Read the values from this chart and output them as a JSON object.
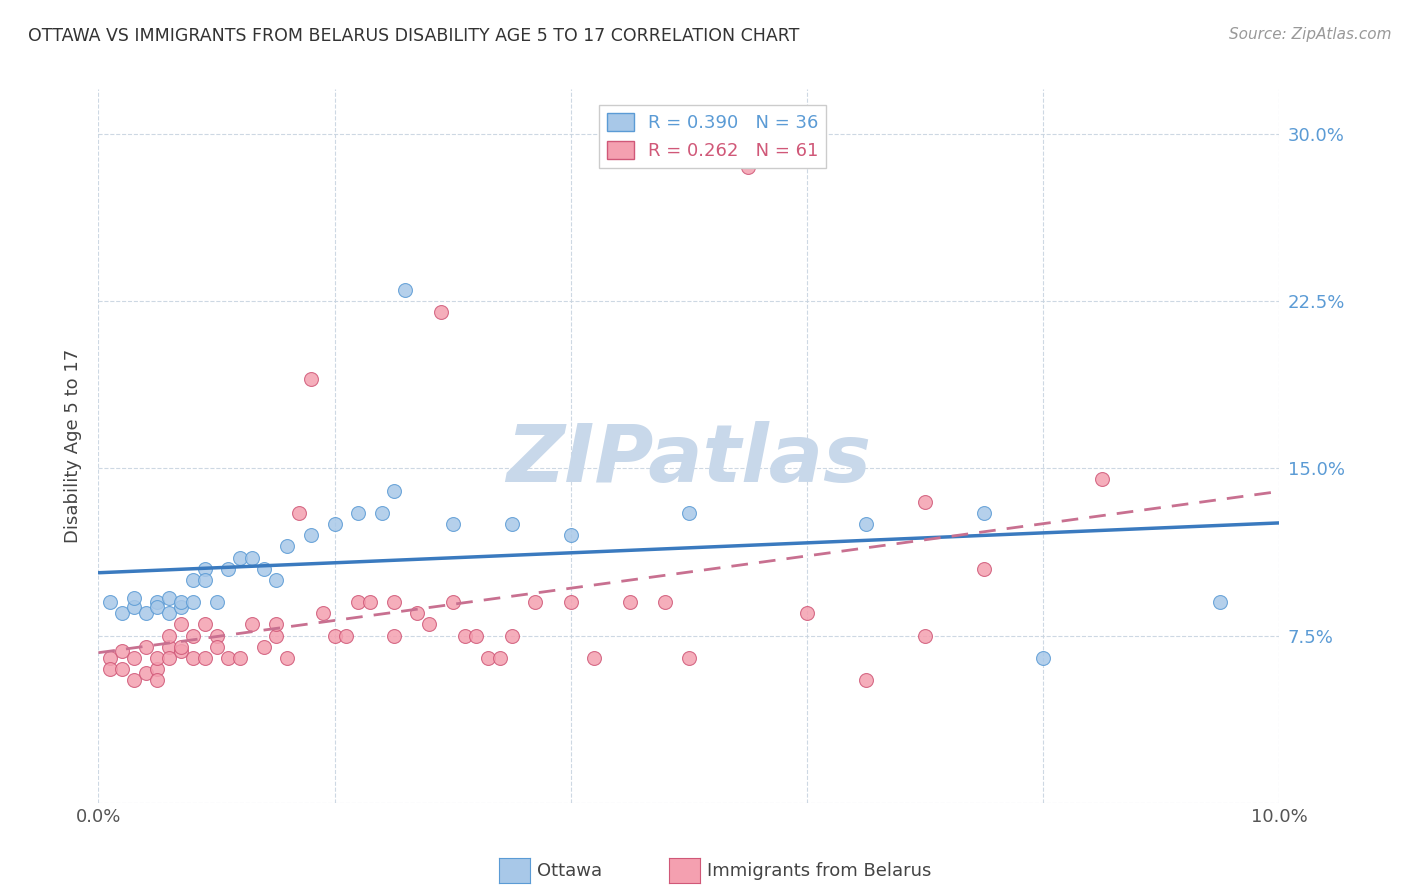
{
  "title": "OTTAWA VS IMMIGRANTS FROM BELARUS DISABILITY AGE 5 TO 17 CORRELATION CHART",
  "source": "Source: ZipAtlas.com",
  "ylabel": "Disability Age 5 to 17",
  "xlim": [
    0.0,
    0.1
  ],
  "ylim": [
    0.0,
    0.32
  ],
  "legend_r1": "R = 0.390",
  "legend_n1": "N = 36",
  "legend_r2": "R = 0.262",
  "legend_n2": "N = 61",
  "blue_color": "#a8c8e8",
  "blue_edge": "#5b9bd5",
  "pink_color": "#f4a0b0",
  "pink_edge": "#d05878",
  "line_blue_color": "#3a7abf",
  "line_pink_color": "#c87090",
  "watermark": "ZIPatlas",
  "watermark_color": "#c8d8ea",
  "ottawa_x": [
    0.001,
    0.002,
    0.003,
    0.003,
    0.004,
    0.005,
    0.005,
    0.006,
    0.006,
    0.007,
    0.007,
    0.008,
    0.008,
    0.009,
    0.009,
    0.01,
    0.011,
    0.012,
    0.013,
    0.014,
    0.015,
    0.016,
    0.018,
    0.02,
    0.022,
    0.024,
    0.025,
    0.026,
    0.03,
    0.035,
    0.04,
    0.05,
    0.065,
    0.075,
    0.08,
    0.095
  ],
  "ottawa_y": [
    0.09,
    0.085,
    0.088,
    0.092,
    0.085,
    0.09,
    0.088,
    0.085,
    0.092,
    0.088,
    0.09,
    0.09,
    0.1,
    0.105,
    0.1,
    0.09,
    0.105,
    0.11,
    0.11,
    0.105,
    0.1,
    0.115,
    0.12,
    0.125,
    0.13,
    0.13,
    0.14,
    0.23,
    0.125,
    0.125,
    0.12,
    0.13,
    0.125,
    0.13,
    0.065,
    0.09
  ],
  "belarus_x": [
    0.001,
    0.001,
    0.002,
    0.002,
    0.003,
    0.003,
    0.004,
    0.004,
    0.005,
    0.005,
    0.005,
    0.006,
    0.006,
    0.006,
    0.007,
    0.007,
    0.007,
    0.008,
    0.008,
    0.009,
    0.009,
    0.01,
    0.01,
    0.011,
    0.012,
    0.013,
    0.014,
    0.015,
    0.015,
    0.016,
    0.017,
    0.018,
    0.019,
    0.02,
    0.021,
    0.022,
    0.023,
    0.025,
    0.025,
    0.027,
    0.028,
    0.029,
    0.03,
    0.031,
    0.032,
    0.033,
    0.034,
    0.035,
    0.037,
    0.04,
    0.042,
    0.045,
    0.048,
    0.05,
    0.055,
    0.06,
    0.065,
    0.07,
    0.075,
    0.085,
    0.07
  ],
  "belarus_y": [
    0.065,
    0.06,
    0.068,
    0.06,
    0.065,
    0.055,
    0.07,
    0.058,
    0.06,
    0.065,
    0.055,
    0.07,
    0.075,
    0.065,
    0.068,
    0.08,
    0.07,
    0.075,
    0.065,
    0.08,
    0.065,
    0.075,
    0.07,
    0.065,
    0.065,
    0.08,
    0.07,
    0.075,
    0.08,
    0.065,
    0.13,
    0.19,
    0.085,
    0.075,
    0.075,
    0.09,
    0.09,
    0.09,
    0.075,
    0.085,
    0.08,
    0.22,
    0.09,
    0.075,
    0.075,
    0.065,
    0.065,
    0.075,
    0.09,
    0.09,
    0.065,
    0.09,
    0.09,
    0.065,
    0.285,
    0.085,
    0.055,
    0.135,
    0.105,
    0.145,
    0.075
  ]
}
